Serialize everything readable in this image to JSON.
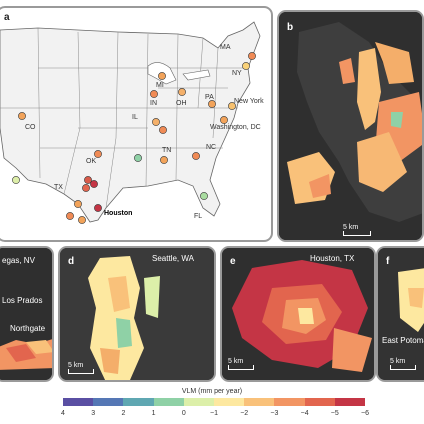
{
  "panels": {
    "a": {
      "letter": "a",
      "labels": {
        "ma": "MA",
        "mi": "MI",
        "ny": "NY",
        "in": "IN",
        "oh": "OH",
        "pa": "PA",
        "new_york": "New York",
        "il": "IL",
        "co": "CO",
        "washington_dc": "Washington, DC",
        "ok": "OK",
        "tn": "TN",
        "nc": "NC",
        "tx": "TX",
        "houston": "Houston",
        "fl": "FL"
      }
    },
    "b": {
      "letter": "b",
      "scale": "5 km"
    },
    "c": {
      "place": "egas, NV",
      "sublabels": [
        "Los Prados",
        "Northgate"
      ]
    },
    "d": {
      "letter": "d",
      "place": "Seattle, WA",
      "scale": "5 km"
    },
    "e": {
      "letter": "e",
      "place": "Houston, TX",
      "scale": "5 km"
    },
    "f": {
      "letter": "f",
      "sublabel": "East Potomac",
      "scale": "5 km"
    }
  },
  "legend": {
    "title": "VLM (mm per year)",
    "ticks": [
      "4",
      "3",
      "2",
      "1",
      "0",
      "−1",
      "−2",
      "−3",
      "−4",
      "−5",
      "−6"
    ],
    "colors": [
      "#5a4fa3",
      "#5577b5",
      "#5fa7b2",
      "#8fd1a6",
      "#dcefa9",
      "#fde8a0",
      "#f9c17a",
      "#f29563",
      "#e2654e",
      "#c43545"
    ]
  },
  "site_markers": [
    {
      "color": "#f2a35a",
      "name": "CO"
    },
    {
      "color": "#f4b06a",
      "name": "IL"
    },
    {
      "color": "#f08b56",
      "name": "IL2"
    },
    {
      "color": "#f08b56",
      "name": "IN"
    },
    {
      "color": "#f2a35a",
      "name": "MI"
    },
    {
      "color": "#f4b06a",
      "name": "OH"
    },
    {
      "color": "#f2a35a",
      "name": "PA"
    },
    {
      "color": "#f9d27a",
      "name": "NY"
    },
    {
      "color": "#f7c16f",
      "name": "NYC"
    },
    {
      "color": "#f08b56",
      "name": "MA"
    },
    {
      "color": "#f2a35a",
      "name": "DC"
    },
    {
      "color": "#f08b56",
      "name": "OK"
    },
    {
      "color": "#d85a49",
      "name": "TX1"
    },
    {
      "color": "#c43545",
      "name": "TX2"
    },
    {
      "color": "#e2654e",
      "name": "TX3"
    },
    {
      "color": "#f2a35a",
      "name": "TX4"
    },
    {
      "color": "#f08b56",
      "name": "TX5"
    },
    {
      "color": "#f2a35a",
      "name": "TX6"
    },
    {
      "color": "#ddeea9",
      "name": "TXW"
    },
    {
      "color": "#8fd1a6",
      "name": "TN1"
    },
    {
      "color": "#f2a35a",
      "name": "TN2"
    },
    {
      "color": "#f08b56",
      "name": "NC"
    },
    {
      "color": "#a9dca0",
      "name": "FL"
    },
    {
      "color": "#c43545",
      "name": "Houston"
    }
  ]
}
